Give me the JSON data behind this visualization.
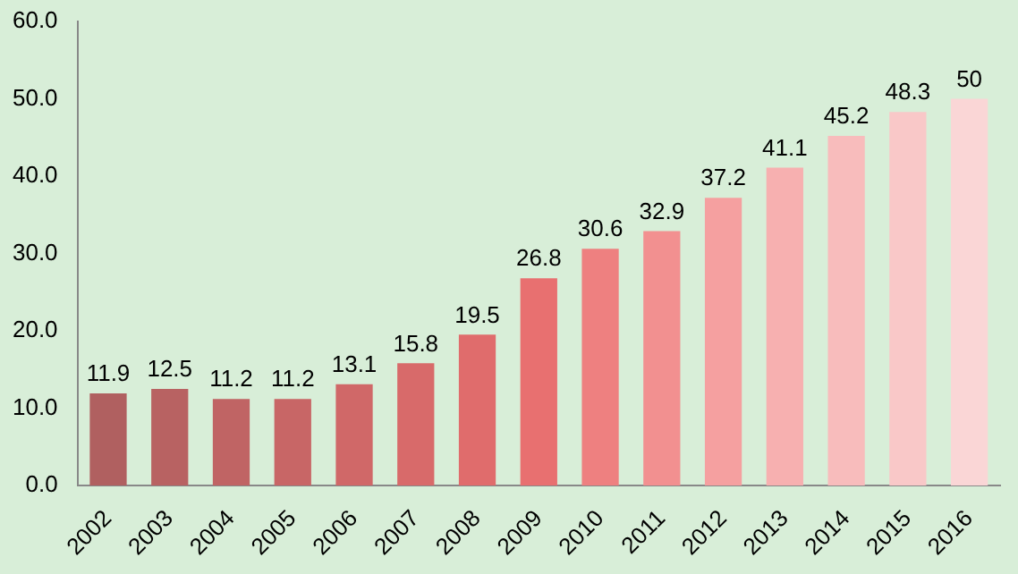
{
  "chart_data": {
    "type": "bar",
    "categories": [
      "2002",
      "2003",
      "2004",
      "2005",
      "2006",
      "2007",
      "2008",
      "2009",
      "2010",
      "2011",
      "2012",
      "2013",
      "2014",
      "2015",
      "2016"
    ],
    "values": [
      11.9,
      12.5,
      11.2,
      11.2,
      13.1,
      15.8,
      19.5,
      26.8,
      30.6,
      32.9,
      37.2,
      41.1,
      45.2,
      48.3,
      50
    ],
    "colors": [
      "#b06060",
      "#b86262",
      "#c06464",
      "#c86666",
      "#d06868",
      "#d86a6a",
      "#e06c6c",
      "#e87070",
      "#ee8080",
      "#f29090",
      "#f5a0a0",
      "#f7b0b0",
      "#f8bcbc",
      "#f9c8c8",
      "#fad6d6"
    ],
    "ylim": [
      0,
      60
    ],
    "yticks": [
      {
        "value": 0,
        "label": "0.0"
      },
      {
        "value": 10,
        "label": "10.0"
      },
      {
        "value": 20,
        "label": "20.0"
      },
      {
        "value": 30,
        "label": "30.0"
      },
      {
        "value": 40,
        "label": "40.0"
      },
      {
        "value": 50,
        "label": "50.0"
      },
      {
        "value": 60,
        "label": "60.0"
      }
    ],
    "grid": false,
    "data_labels": true
  }
}
